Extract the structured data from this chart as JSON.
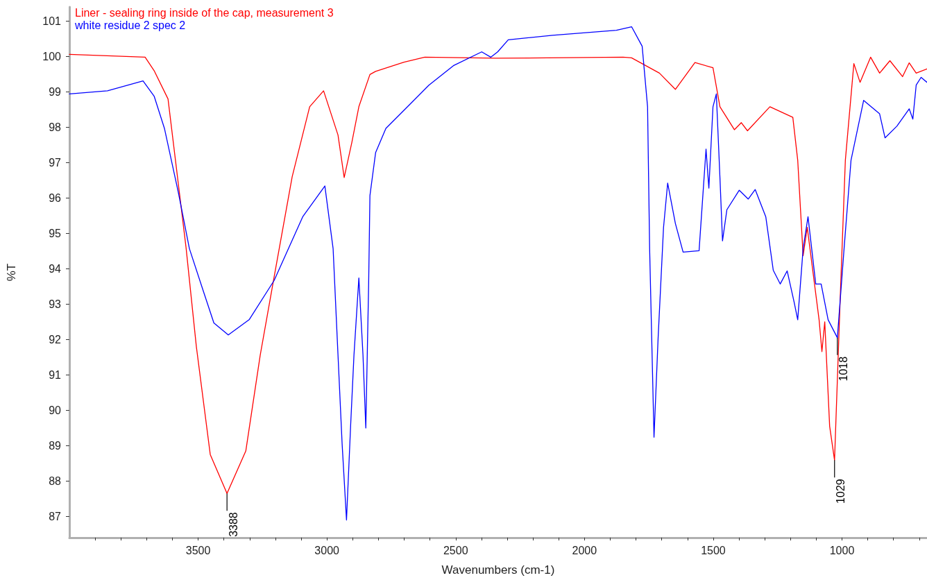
{
  "chart_data": {
    "type": "line",
    "xlabel": "Wavenumbers (cm-1)",
    "ylabel": "%T",
    "xlim": [
      4000,
      670
    ],
    "ylim": [
      86.4,
      101.4
    ],
    "xticks": [
      {
        "value": 3900,
        "label": null
      },
      {
        "value": 3800,
        "label": null
      },
      {
        "value": 3700,
        "label": null
      },
      {
        "value": 3600,
        "label": null
      },
      3500,
      {
        "value": 3400,
        "label": null
      },
      {
        "value": 3300,
        "label": null
      },
      {
        "value": 3200,
        "label": null
      },
      {
        "value": 3100,
        "label": null
      },
      3000,
      {
        "value": 2900,
        "label": null
      },
      {
        "value": 2800,
        "label": null
      },
      {
        "value": 2700,
        "label": null
      },
      {
        "value": 2600,
        "label": null
      },
      2500,
      {
        "value": 2400,
        "label": null
      },
      {
        "value": 2300,
        "label": null
      },
      {
        "value": 2200,
        "label": null
      },
      {
        "value": 2100,
        "label": null
      },
      2000,
      {
        "value": 1900,
        "label": null
      },
      {
        "value": 1800,
        "label": null
      },
      {
        "value": 1700,
        "label": null
      },
      {
        "value": 1600,
        "label": null
      },
      1500,
      {
        "value": 1400,
        "label": null
      },
      {
        "value": 1300,
        "label": null
      },
      {
        "value": 1200,
        "label": null
      },
      {
        "value": 1100,
        "label": null
      },
      1000,
      {
        "value": 900,
        "label": null
      },
      {
        "value": 800,
        "label": null
      },
      {
        "value": 700,
        "label": null
      }
    ],
    "yticks": [
      87,
      88,
      89,
      90,
      91,
      92,
      93,
      94,
      95,
      96,
      97,
      98,
      99,
      100,
      101
    ],
    "grid": false,
    "legend": "top left",
    "marker": "none",
    "line_style": "solid",
    "series": [
      {
        "name": "Liner - sealing ring inside of the cap, measurement 3",
        "color": "#ff0000",
        "x": [
          4000,
          3706,
          3671,
          3617,
          3577,
          3547,
          3507,
          3453,
          3388,
          3315,
          3259,
          3205,
          3135,
          3067,
          3013,
          2957,
          2933,
          2903,
          2876,
          2833,
          2811,
          2701,
          2620,
          2345,
          1850,
          1817,
          1709,
          1647,
          1571,
          1501,
          1474,
          1418,
          1391,
          1367,
          1280,
          1191,
          1172,
          1151,
          1135,
          1089,
          1078,
          1067,
          1048,
          1029,
          1005,
          987,
          954,
          930,
          889,
          854,
          814,
          765,
          739,
          712,
          670
        ],
        "values": [
          100.06,
          99.98,
          99.6,
          98.8,
          96.4,
          94.6,
          91.8,
          88.75,
          87.65,
          88.85,
          91.56,
          93.77,
          96.6,
          98.58,
          99.03,
          97.78,
          96.58,
          97.58,
          98.58,
          99.49,
          99.58,
          99.84,
          99.98,
          99.95,
          99.98,
          99.96,
          99.53,
          99.07,
          99.83,
          99.68,
          98.58,
          97.93,
          98.13,
          97.9,
          98.58,
          98.28,
          97.07,
          94.37,
          95.17,
          92.56,
          91.66,
          92.5,
          89.55,
          88.59,
          93.57,
          97.07,
          99.8,
          99.27,
          99.98,
          99.53,
          99.88,
          99.43,
          99.82,
          99.53,
          99.65
        ]
      },
      {
        "name": "white residue 2 spec 2",
        "color": "#0000ff",
        "x": [
          4000,
          3852,
          3714,
          3671,
          3631,
          3577,
          3534,
          3480,
          3439,
          3383,
          3302,
          3205,
          3094,
          3008,
          2976,
          2957,
          2941,
          2924,
          2908,
          2895,
          2876,
          2860,
          2849,
          2838,
          2833,
          2811,
          2771,
          2687,
          2604,
          2509,
          2399,
          2364,
          2337,
          2296,
          2124,
          1876,
          1817,
          1776,
          1755,
          1747,
          1730,
          1714,
          1693,
          1677,
          1647,
          1617,
          1555,
          1528,
          1517,
          1501,
          1488,
          1474,
          1464,
          1447,
          1399,
          1364,
          1337,
          1296,
          1267,
          1240,
          1213,
          1186,
          1172,
          1151,
          1132,
          1102,
          1081,
          1054,
          1018,
          992,
          965,
          916,
          854,
          833,
          787,
          739,
          725,
          712,
          693,
          670
        ],
        "values": [
          98.94,
          99.03,
          99.31,
          98.88,
          97.97,
          96.16,
          94.57,
          93.37,
          92.47,
          92.13,
          92.56,
          93.67,
          95.47,
          96.34,
          94.57,
          91.56,
          89.05,
          86.9,
          89.56,
          91.56,
          93.74,
          91.56,
          89.5,
          93.57,
          96.07,
          97.28,
          97.97,
          98.58,
          99.19,
          99.74,
          100.13,
          99.98,
          100.13,
          100.47,
          100.6,
          100.74,
          100.84,
          100.29,
          98.58,
          94.57,
          89.24,
          92.05,
          95.17,
          96.42,
          95.28,
          94.47,
          94.51,
          97.38,
          96.28,
          98.58,
          98.94,
          96.58,
          94.79,
          95.67,
          96.22,
          95.97,
          96.24,
          95.47,
          93.96,
          93.57,
          93.94,
          93.06,
          92.56,
          94.57,
          95.47,
          93.57,
          93.57,
          92.56,
          92.05,
          94.57,
          97.07,
          98.76,
          98.38,
          97.7,
          98.03,
          98.52,
          98.23,
          99.19,
          99.41,
          99.27
        ]
      }
    ],
    "annotations": [
      {
        "text": "3388",
        "x": 3388,
        "y": 87.65
      },
      {
        "text": "1029",
        "x": 1029,
        "y": 88.59
      },
      {
        "text": "1018",
        "x": 1018,
        "y": 92.05
      }
    ]
  }
}
